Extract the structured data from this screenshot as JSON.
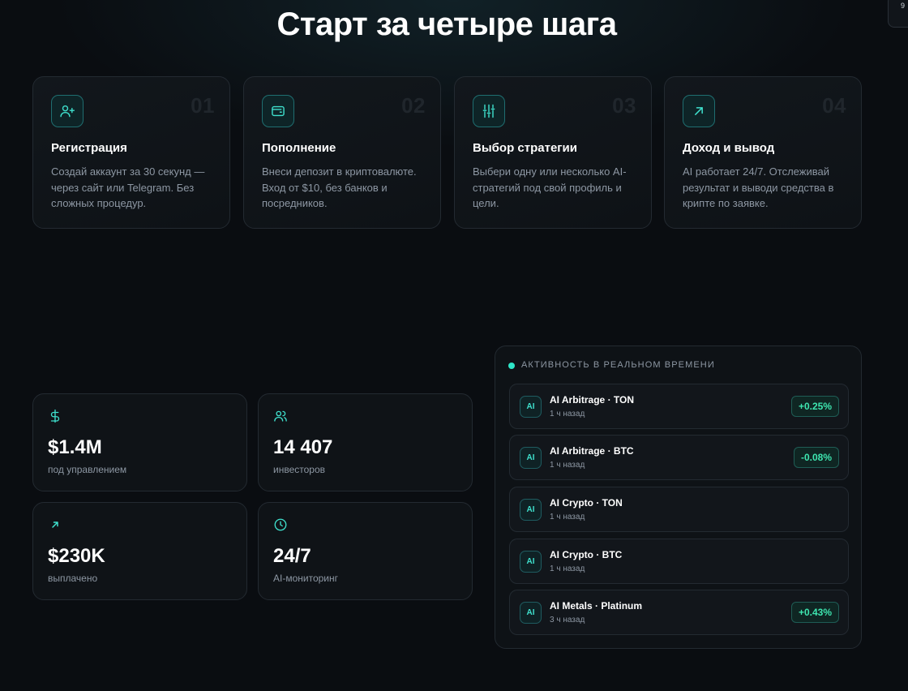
{
  "page_title": "Старт за четыре шага",
  "corner_chip_text": "9",
  "steps": [
    {
      "number": "01",
      "icon": "user-plus-icon",
      "title": "Регистрация",
      "desc": "Создай аккаунт за 30 секунд — через сайт или Telegram. Без сложных процедур."
    },
    {
      "number": "02",
      "icon": "wallet-icon",
      "title": "Пополнение",
      "desc": "Внеси депозит в криптовалюте. Вход от $10, без банков и посредников."
    },
    {
      "number": "03",
      "icon": "sliders-icon",
      "title": "Выбор стратегии",
      "desc": "Выбери одну или несколько AI-стратегий под свой профиль и цели."
    },
    {
      "number": "04",
      "icon": "arrow-up-right-icon",
      "title": "Доход и вывод",
      "desc": "AI работает 24/7. Отслеживай результат и выводи средства в крипте по заявке."
    }
  ],
  "stats": [
    {
      "icon": "dollar-icon",
      "value": "$1.4M",
      "label": "под управлением"
    },
    {
      "icon": "users-icon",
      "value": "14 407",
      "label": "инвесторов"
    },
    {
      "icon": "arrow-up-right-icon",
      "value": "$230K",
      "label": "выплачено"
    },
    {
      "icon": "clock-icon",
      "value": "24/7",
      "label": "AI-мониторинг"
    }
  ],
  "activity": {
    "heading": "АКТИВНОСТЬ В РЕАЛЬНОМ ВРЕМЕНИ",
    "badge": "AI",
    "items": [
      {
        "name": "AI Arbitrage · TON",
        "time": "1 ч назад",
        "change": "+0.25%"
      },
      {
        "name": "AI Arbitrage · BTC",
        "time": "1 ч назад",
        "change": "-0.08%"
      },
      {
        "name": "AI Crypto · TON",
        "time": "1 ч назад",
        "change": ""
      },
      {
        "name": "AI Crypto · BTC",
        "time": "1 ч назад",
        "change": ""
      },
      {
        "name": "AI Metals · Platinum",
        "time": "3 ч назад",
        "change": "+0.43%"
      }
    ]
  },
  "colors": {
    "accent": "#3fe0cd",
    "positive": "#3ee6b0",
    "background": "#0a0d11"
  }
}
